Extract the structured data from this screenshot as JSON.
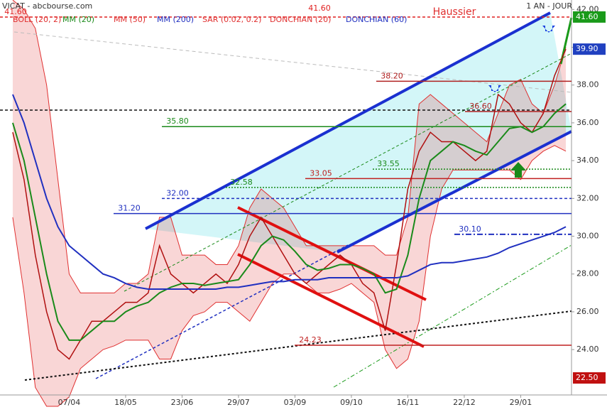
{
  "chart_data": {
    "type": "line",
    "title": "VICAT - abcbourse.com",
    "period": "1 AN - JOUR",
    "annotation": "Haussier",
    "categories": [
      null,
      null,
      null,
      null,
      null,
      "07/04",
      null,
      null,
      null,
      null,
      "18/05",
      null,
      null,
      null,
      null,
      "23/06",
      null,
      null,
      null,
      null,
      "29/07",
      null,
      null,
      null,
      null,
      "03/09",
      null,
      null,
      null,
      null,
      "09/10",
      null,
      null,
      null,
      null,
      "16/11",
      null,
      null,
      null,
      null,
      "22/12",
      null,
      null,
      null,
      null,
      "29/01",
      null,
      null,
      null,
      null
    ],
    "price": {
      "color": "#b01010",
      "values": [
        35.5,
        33,
        29,
        26,
        24,
        23.5,
        24.5,
        25.5,
        25.5,
        26,
        26.5,
        26.5,
        27,
        29.5,
        28,
        27.5,
        27,
        27.5,
        28,
        27.5,
        28.5,
        30,
        31,
        30,
        29,
        28,
        27.5,
        28,
        28.5,
        29,
        28.5,
        27.5,
        27,
        25,
        28.5,
        32.5,
        34.5,
        35.5,
        35,
        35,
        34.5,
        34,
        34.5,
        37.5,
        37,
        36,
        35.5,
        36.5,
        38.5,
        39.9
      ]
    },
    "series": [
      {
        "name": "BOLL (20, 2)",
        "color": "#e03030",
        "upper": [
          42.5,
          42,
          41,
          38,
          33,
          28,
          27,
          27,
          27,
          27,
          27.5,
          27.5,
          28,
          31,
          31,
          29,
          29,
          29,
          28.5,
          28.5,
          29.5,
          31.5,
          32.5,
          32,
          31.5,
          30.5,
          29.5,
          29.5,
          29.5,
          29.5,
          29.5,
          29.5,
          29.5,
          29,
          29,
          31,
          37,
          37.5,
          37,
          36.5,
          36,
          35.5,
          35,
          36.5,
          38,
          38.3,
          37,
          36.5,
          38,
          40
        ],
        "lower": [
          31,
          27,
          22,
          21,
          21,
          21.5,
          23,
          23.5,
          24,
          24.2,
          24.5,
          24.5,
          24.5,
          23.5,
          23.5,
          25,
          25.8,
          26,
          26.5,
          26.5,
          26,
          25.5,
          26.5,
          27.5,
          28,
          28,
          27.5,
          27,
          27,
          27.2,
          27.5,
          27,
          26.5,
          24,
          23,
          23.5,
          25.5,
          30,
          32.5,
          33.5,
          33.5,
          33.5,
          33.5,
          33.5,
          33.5,
          33,
          34,
          34.5,
          34.8,
          34.5
        ]
      },
      {
        "name": "MM (20)",
        "color": "#1a8a1a",
        "values": [
          36,
          34,
          31,
          28,
          25.5,
          24.5,
          24.5,
          25,
          25.5,
          25.5,
          26,
          26.3,
          26.5,
          27,
          27.3,
          27.5,
          27.5,
          27.4,
          27.5,
          27.6,
          27.7,
          28.5,
          29.5,
          30,
          29.8,
          29.2,
          28.5,
          28.2,
          28.3,
          28.5,
          28.5,
          28.3,
          28,
          27,
          27.2,
          29,
          32,
          34,
          34.5,
          35,
          34.8,
          34.5,
          34.3,
          35,
          35.7,
          35.8,
          35.5,
          35.8,
          36.5,
          37
        ]
      },
      {
        "name": "MM (50)",
        "color": "#e03030"
      },
      {
        "name": "MM (200)",
        "color": "#2030c0",
        "values": [
          37.5,
          36,
          34,
          32,
          30.5,
          29.5,
          29,
          28.5,
          28,
          27.8,
          27.5,
          27.3,
          27.2,
          27.2,
          27.2,
          27.2,
          27.2,
          27.2,
          27.2,
          27.3,
          27.3,
          27.4,
          27.5,
          27.6,
          27.6,
          27.7,
          27.7,
          27.7,
          27.8,
          27.8,
          27.8,
          27.8,
          27.8,
          27.8,
          27.8,
          27.9,
          28.2,
          28.5,
          28.6,
          28.6,
          28.7,
          28.8,
          28.9,
          29.1,
          29.4,
          29.6,
          29.8,
          30,
          30.2,
          30.5
        ]
      },
      {
        "name": "SAR (0.02, 0.2)",
        "color": "#e03030"
      },
      {
        "name": "DONCHIAN (20)",
        "color": "#e03030"
      },
      {
        "name": "DONCHIAN (60)",
        "color": "#2030c0"
      }
    ],
    "levels": [
      {
        "value": 41.6,
        "label": "41.60",
        "color": "#e02020",
        "dash": "4,3"
      },
      {
        "value": 38.2,
        "label": "38.20",
        "color": "#b02020",
        "dash": ""
      },
      {
        "value": 36.6,
        "label": "36.60",
        "color": "#b02020",
        "dash": ""
      },
      {
        "value": 35.8,
        "label": "35.80",
        "color": "#1a8a1a",
        "dash": ""
      },
      {
        "value": 33.55,
        "label": "33.55",
        "color": "#1a8a1a",
        "dash": "2,2"
      },
      {
        "value": 33.05,
        "label": "33.05",
        "color": "#c02020",
        "dash": ""
      },
      {
        "value": 32.58,
        "label": "32.58",
        "color": "#1a8a1a",
        "dash": "2,2"
      },
      {
        "value": 32,
        "label": "32.00",
        "color": "#2030c0",
        "dash": "4,3"
      },
      {
        "value": 31.2,
        "label": "31.20",
        "color": "#2030c0",
        "dash": ""
      },
      {
        "value": 30.1,
        "label": "30.10",
        "color": "#2030c0",
        "dash": "8,3,2,3"
      },
      {
        "value": 24.23,
        "label": "24.23",
        "color": "#c02020",
        "dash": ""
      }
    ],
    "price_tags": [
      {
        "value": 41.6,
        "label": "41.60",
        "color": "#1a9a1a"
      },
      {
        "value": 39.9,
        "label": "39.90",
        "color": "#2040c0"
      },
      {
        "value": 22.5,
        "label": "22.50",
        "color": "#c01010"
      }
    ],
    "ylim": [
      21.6,
      42.5
    ],
    "yticks": [
      {
        "value": 24,
        "label": "24.00"
      },
      {
        "value": 26,
        "label": "26.00"
      },
      {
        "value": 28,
        "label": "28.00"
      },
      {
        "value": 30,
        "label": "30.00"
      },
      {
        "value": 32,
        "label": "32.00"
      },
      {
        "value": 34,
        "label": "34.00"
      },
      {
        "value": 36,
        "label": "36.00"
      },
      {
        "value": 38,
        "label": "38.00"
      },
      {
        "value": 40,
        "label": "40.00"
      },
      {
        "value": 42,
        "label": "42.00"
      }
    ]
  }
}
